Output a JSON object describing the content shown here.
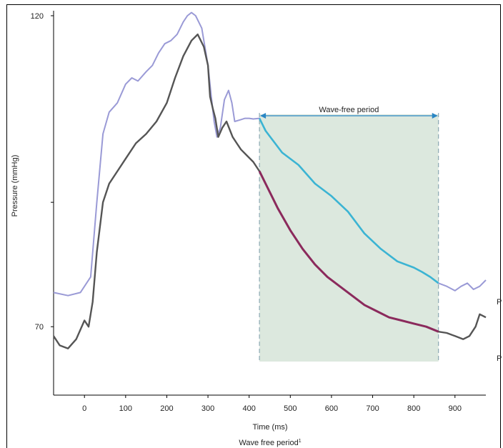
{
  "chart_data": {
    "type": "line",
    "title": "",
    "xlabel": "Time (ms)",
    "ylabel": "Pressure (mmHg)",
    "caption": "Wave free period",
    "caption_sup": "1",
    "xlim": [
      -75,
      975
    ],
    "ylim": [
      59,
      120
    ],
    "x_ticks": [
      0,
      100,
      200,
      300,
      400,
      500,
      600,
      700,
      800,
      900
    ],
    "y_ticks": [
      70,
      120
    ],
    "grid": false,
    "wave_free_period": {
      "label": "Wave-free period",
      "start": 425,
      "end": 860,
      "color": "#dce8de"
    },
    "series_end_labels": [
      "P",
      "P"
    ],
    "series": [
      {
        "color": "#9a9ad6",
        "highlight_color": "#3bb4d3",
        "x": [
          -75,
          -40,
          -10,
          15,
          30,
          45,
          60,
          80,
          100,
          115,
          130,
          150,
          165,
          180,
          195,
          210,
          225,
          240,
          250,
          260,
          270,
          285,
          300,
          308,
          315,
          322,
          330,
          340,
          350,
          358,
          365,
          380,
          390,
          400,
          410,
          425,
          440,
          480,
          520,
          560,
          600,
          640,
          680,
          720,
          760,
          800,
          820,
          840,
          860,
          880,
          900,
          915,
          930,
          945,
          960,
          975
        ],
        "y": [
          75.5,
          75,
          75.5,
          78,
          90,
          101,
          104.5,
          106,
          109,
          110,
          109.5,
          111,
          112,
          114,
          115.5,
          116,
          117,
          119,
          120,
          120.5,
          120,
          118,
          112,
          107,
          103,
          100.5,
          102,
          106.5,
          108,
          106,
          103,
          103.3,
          103.5,
          103.5,
          103.4,
          103.5,
          101.5,
          98,
          96,
          93,
          91,
          88.5,
          85,
          82.5,
          80.5,
          79.5,
          78.8,
          78,
          77,
          76.5,
          75.8,
          76.5,
          77,
          76,
          76.5,
          77.5
        ]
      },
      {
        "color": "#555555",
        "highlight_color": "#8b2a5c",
        "x": [
          -75,
          -60,
          -40,
          -20,
          0,
          10,
          20,
          30,
          45,
          60,
          80,
          100,
          125,
          150,
          175,
          200,
          220,
          240,
          260,
          275,
          290,
          300,
          305,
          312,
          318,
          325,
          335,
          345,
          360,
          370,
          380,
          395,
          410,
          425,
          440,
          470,
          500,
          530,
          560,
          590,
          620,
          650,
          680,
          710,
          740,
          770,
          800,
          830,
          860,
          880,
          900,
          920,
          935,
          950,
          960,
          975
        ],
        "y": [
          68.5,
          67,
          66.5,
          68,
          71,
          70,
          74,
          82,
          90,
          93,
          95,
          97,
          99.5,
          101,
          103,
          106,
          110,
          113.5,
          116,
          117,
          115,
          112,
          107,
          105,
          103.5,
          100.5,
          102,
          103,
          100.5,
          99.5,
          98.5,
          97.5,
          96.5,
          95,
          93,
          89,
          85.5,
          82.5,
          80,
          78,
          76.5,
          75,
          73.5,
          72.5,
          71.5,
          71,
          70.5,
          70,
          69.2,
          69,
          68.5,
          68,
          68.5,
          70,
          72,
          71.5
        ]
      }
    ]
  }
}
